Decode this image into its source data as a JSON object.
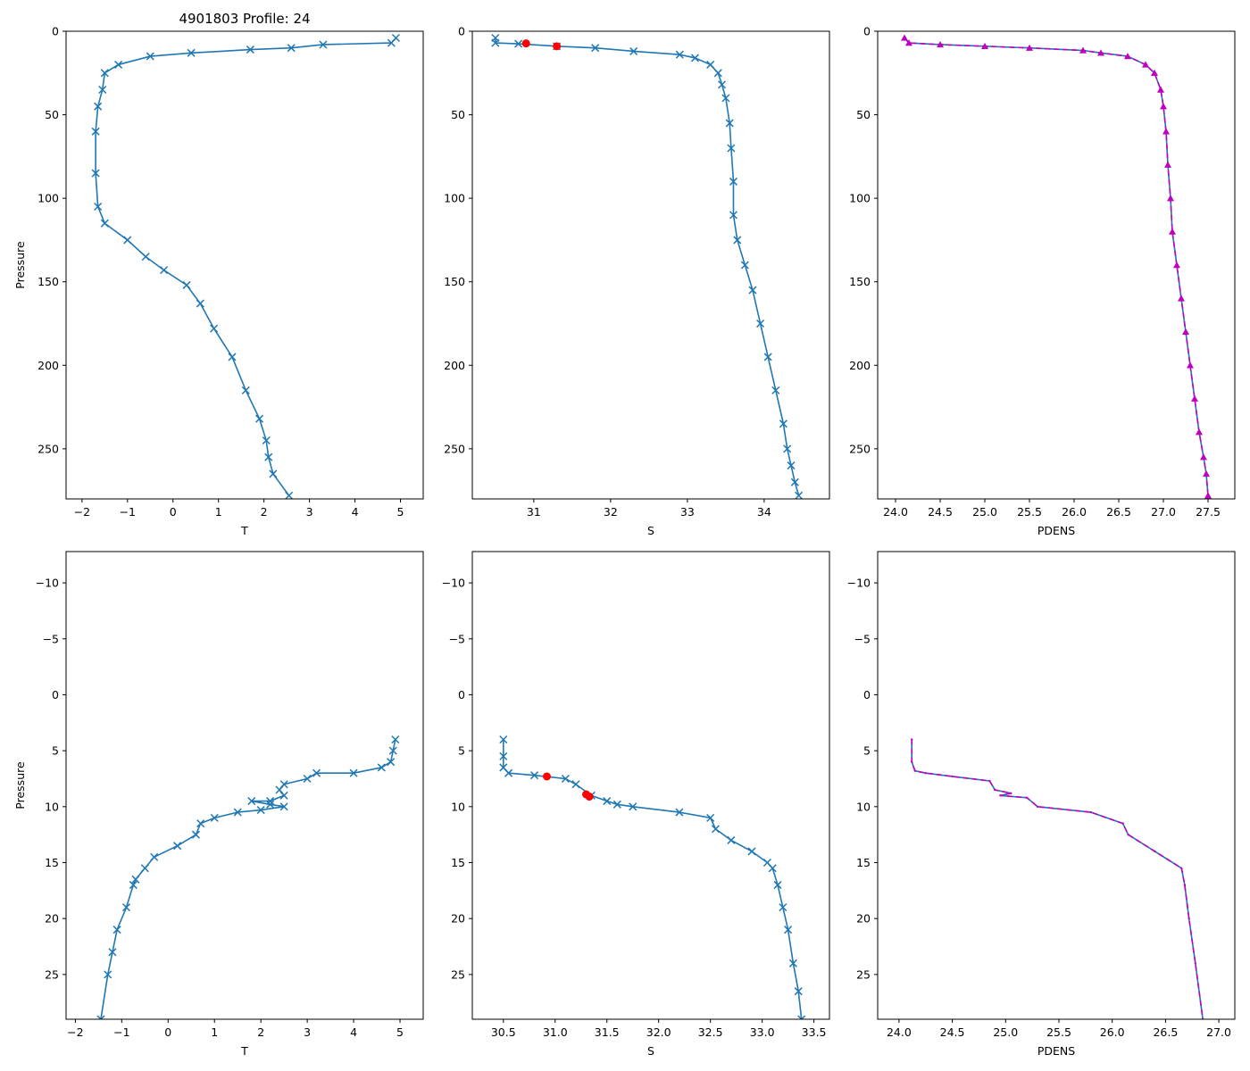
{
  "figure": {
    "title": "4901803 Profile: 24",
    "colors": {
      "line": "#1f77b4",
      "marker": "#1f77b4",
      "bad": "#ff0000",
      "density": "#bf00bf"
    }
  },
  "chart_data": [
    {
      "type": "line",
      "title": "4901803 Profile: 24",
      "xlabel": "T",
      "ylabel": "Pressure",
      "xlim": [
        -2.35,
        5.5
      ],
      "ylim": [
        280,
        0
      ],
      "xticks": [
        -2,
        -1,
        0,
        1,
        2,
        3,
        4,
        5
      ],
      "yticks": [
        0,
        50,
        100,
        150,
        200,
        250
      ],
      "marker": "x",
      "series": [
        {
          "name": "T",
          "x": [
            4.9,
            4.8,
            3.3,
            2.6,
            1.7,
            0.4,
            -0.5,
            -1.2,
            -1.5,
            -1.55,
            -1.65,
            -1.7,
            -1.7,
            -1.65,
            -1.5,
            -1.0,
            -0.6,
            -0.2,
            0.3,
            0.6,
            0.9,
            1.3,
            1.6,
            1.9,
            2.05,
            2.1,
            2.2,
            2.55
          ],
          "y": [
            4,
            7,
            8,
            10,
            11,
            13,
            15,
            20,
            25,
            35,
            45,
            60,
            85,
            105,
            115,
            125,
            135,
            143,
            152,
            163,
            178,
            195,
            215,
            232,
            245,
            255,
            265,
            278
          ]
        }
      ]
    },
    {
      "type": "line",
      "title": "",
      "xlabel": "S",
      "ylabel": "",
      "xlim": [
        30.2,
        34.85
      ],
      "ylim": [
        280,
        0
      ],
      "xticks": [
        31,
        32,
        33,
        34
      ],
      "yticks": [
        0,
        50,
        100,
        150,
        200,
        250
      ],
      "marker": "x",
      "series": [
        {
          "name": "S",
          "x": [
            30.5,
            30.5,
            30.8,
            31.3,
            31.8,
            32.3,
            32.9,
            33.1,
            33.3,
            33.4,
            33.45,
            33.5,
            33.55,
            33.57,
            33.6,
            33.6,
            33.65,
            33.75,
            33.85,
            33.95,
            34.05,
            34.15,
            34.25,
            34.3,
            34.35,
            34.4,
            34.45
          ],
          "y": [
            4,
            7,
            7.5,
            9,
            10,
            12,
            14,
            16,
            20,
            25,
            32,
            40,
            55,
            70,
            90,
            110,
            125,
            140,
            155,
            175,
            195,
            215,
            235,
            250,
            260,
            270,
            278
          ]
        }
      ],
      "flagged_points": {
        "name": "flagged S",
        "x": [
          30.9,
          31.3
        ],
        "y": [
          7.3,
          9.0
        ]
      }
    },
    {
      "type": "line",
      "title": "",
      "xlabel": "PDENS",
      "ylabel": "",
      "xlim": [
        23.8,
        27.8
      ],
      "ylim": [
        280,
        0
      ],
      "xticks": [
        24.0,
        24.5,
        25.0,
        25.5,
        26.0,
        26.5,
        27.0,
        27.5
      ],
      "yticks": [
        0,
        50,
        100,
        150,
        200,
        250
      ],
      "marker": "^",
      "series": [
        {
          "name": "PDENS",
          "x": [
            24.1,
            24.15,
            24.5,
            25.0,
            25.5,
            26.1,
            26.3,
            26.6,
            26.8,
            26.9,
            26.97,
            27.0,
            27.03,
            27.05,
            27.08,
            27.1,
            27.15,
            27.2,
            27.25,
            27.3,
            27.35,
            27.4,
            27.45,
            27.48,
            27.5
          ],
          "y": [
            4,
            7,
            8,
            9,
            10,
            11.5,
            13,
            15,
            20,
            25,
            35,
            45,
            60,
            80,
            100,
            120,
            140,
            160,
            180,
            200,
            220,
            240,
            255,
            265,
            278
          ]
        }
      ]
    },
    {
      "type": "line",
      "title": "",
      "xlabel": "T",
      "ylabel": "Pressure",
      "xlim": [
        -2.2,
        5.5
      ],
      "ylim": [
        29,
        -12.8
      ],
      "xticks": [
        -2,
        -1,
        0,
        1,
        2,
        3,
        4,
        5
      ],
      "yticks": [
        -10,
        -5,
        0,
        5,
        10,
        15,
        20,
        25
      ],
      "marker": "x",
      "series": [
        {
          "name": "T",
          "x": [
            4.9,
            4.85,
            4.8,
            4.6,
            4.0,
            3.2,
            3.0,
            2.5,
            2.4,
            2.5,
            2.2,
            1.8,
            2.2,
            2.5,
            2.0,
            1.5,
            1.0,
            0.7,
            0.6,
            0.2,
            -0.3,
            -0.5,
            -0.7,
            -0.75,
            -0.9,
            -1.1,
            -1.2,
            -1.3,
            -1.45
          ],
          "y": [
            4,
            5,
            6,
            6.5,
            7,
            7,
            7.5,
            8,
            8.5,
            9,
            9.5,
            9.5,
            9.8,
            10,
            10.3,
            10.5,
            11,
            11.5,
            12.5,
            13.5,
            14.5,
            15.5,
            16.5,
            17,
            19,
            21,
            23,
            25,
            29
          ]
        }
      ]
    },
    {
      "type": "line",
      "title": "",
      "xlabel": "S",
      "ylabel": "",
      "xlim": [
        30.2,
        33.65
      ],
      "ylim": [
        29,
        -12.8
      ],
      "xticks": [
        30.5,
        31.0,
        31.5,
        32.0,
        32.5,
        33.0,
        33.5
      ],
      "yticks": [
        -10,
        -5,
        0,
        5,
        10,
        15,
        20,
        25
      ],
      "marker": "x",
      "series": [
        {
          "name": "S",
          "x": [
            30.5,
            30.5,
            30.5,
            30.55,
            30.8,
            31.1,
            31.2,
            31.35,
            31.5,
            31.6,
            31.75,
            32.2,
            32.5,
            32.55,
            32.7,
            32.9,
            33.05,
            33.1,
            33.15,
            33.2,
            33.25,
            33.3,
            33.35,
            33.38
          ],
          "y": [
            4,
            5.5,
            6.5,
            7,
            7.2,
            7.5,
            8,
            9,
            9.5,
            9.8,
            10,
            10.5,
            11,
            12,
            13,
            14,
            15,
            15.5,
            17,
            19,
            21,
            24,
            26.5,
            29
          ]
        }
      ],
      "flagged_points": {
        "name": "flagged S",
        "x": [
          30.92,
          31.3,
          31.33
        ],
        "y": [
          7.3,
          8.9,
          9.1
        ]
      }
    },
    {
      "type": "line",
      "title": "",
      "xlabel": "PDENS",
      "ylabel": "",
      "xlim": [
        23.8,
        27.15
      ],
      "ylim": [
        29,
        -12.8
      ],
      "xticks": [
        24.0,
        24.5,
        25.0,
        25.5,
        26.0,
        26.5,
        27.0
      ],
      "yticks": [
        -10,
        -5,
        0,
        5,
        10,
        15,
        20,
        25
      ],
      "marker": "^",
      "series": [
        {
          "name": "PDENS",
          "x": [
            24.12,
            24.12,
            24.15,
            24.25,
            24.5,
            24.85,
            24.9,
            25.05,
            24.95,
            25.2,
            25.3,
            25.8,
            26.1,
            26.15,
            26.4,
            26.65,
            26.68,
            26.72,
            26.78,
            26.85
          ],
          "y": [
            4,
            6,
            6.8,
            7,
            7.3,
            7.7,
            8.5,
            8.8,
            9,
            9.2,
            10,
            10.5,
            11.5,
            12.5,
            14,
            15.5,
            17,
            20,
            24,
            29
          ]
        }
      ]
    }
  ]
}
